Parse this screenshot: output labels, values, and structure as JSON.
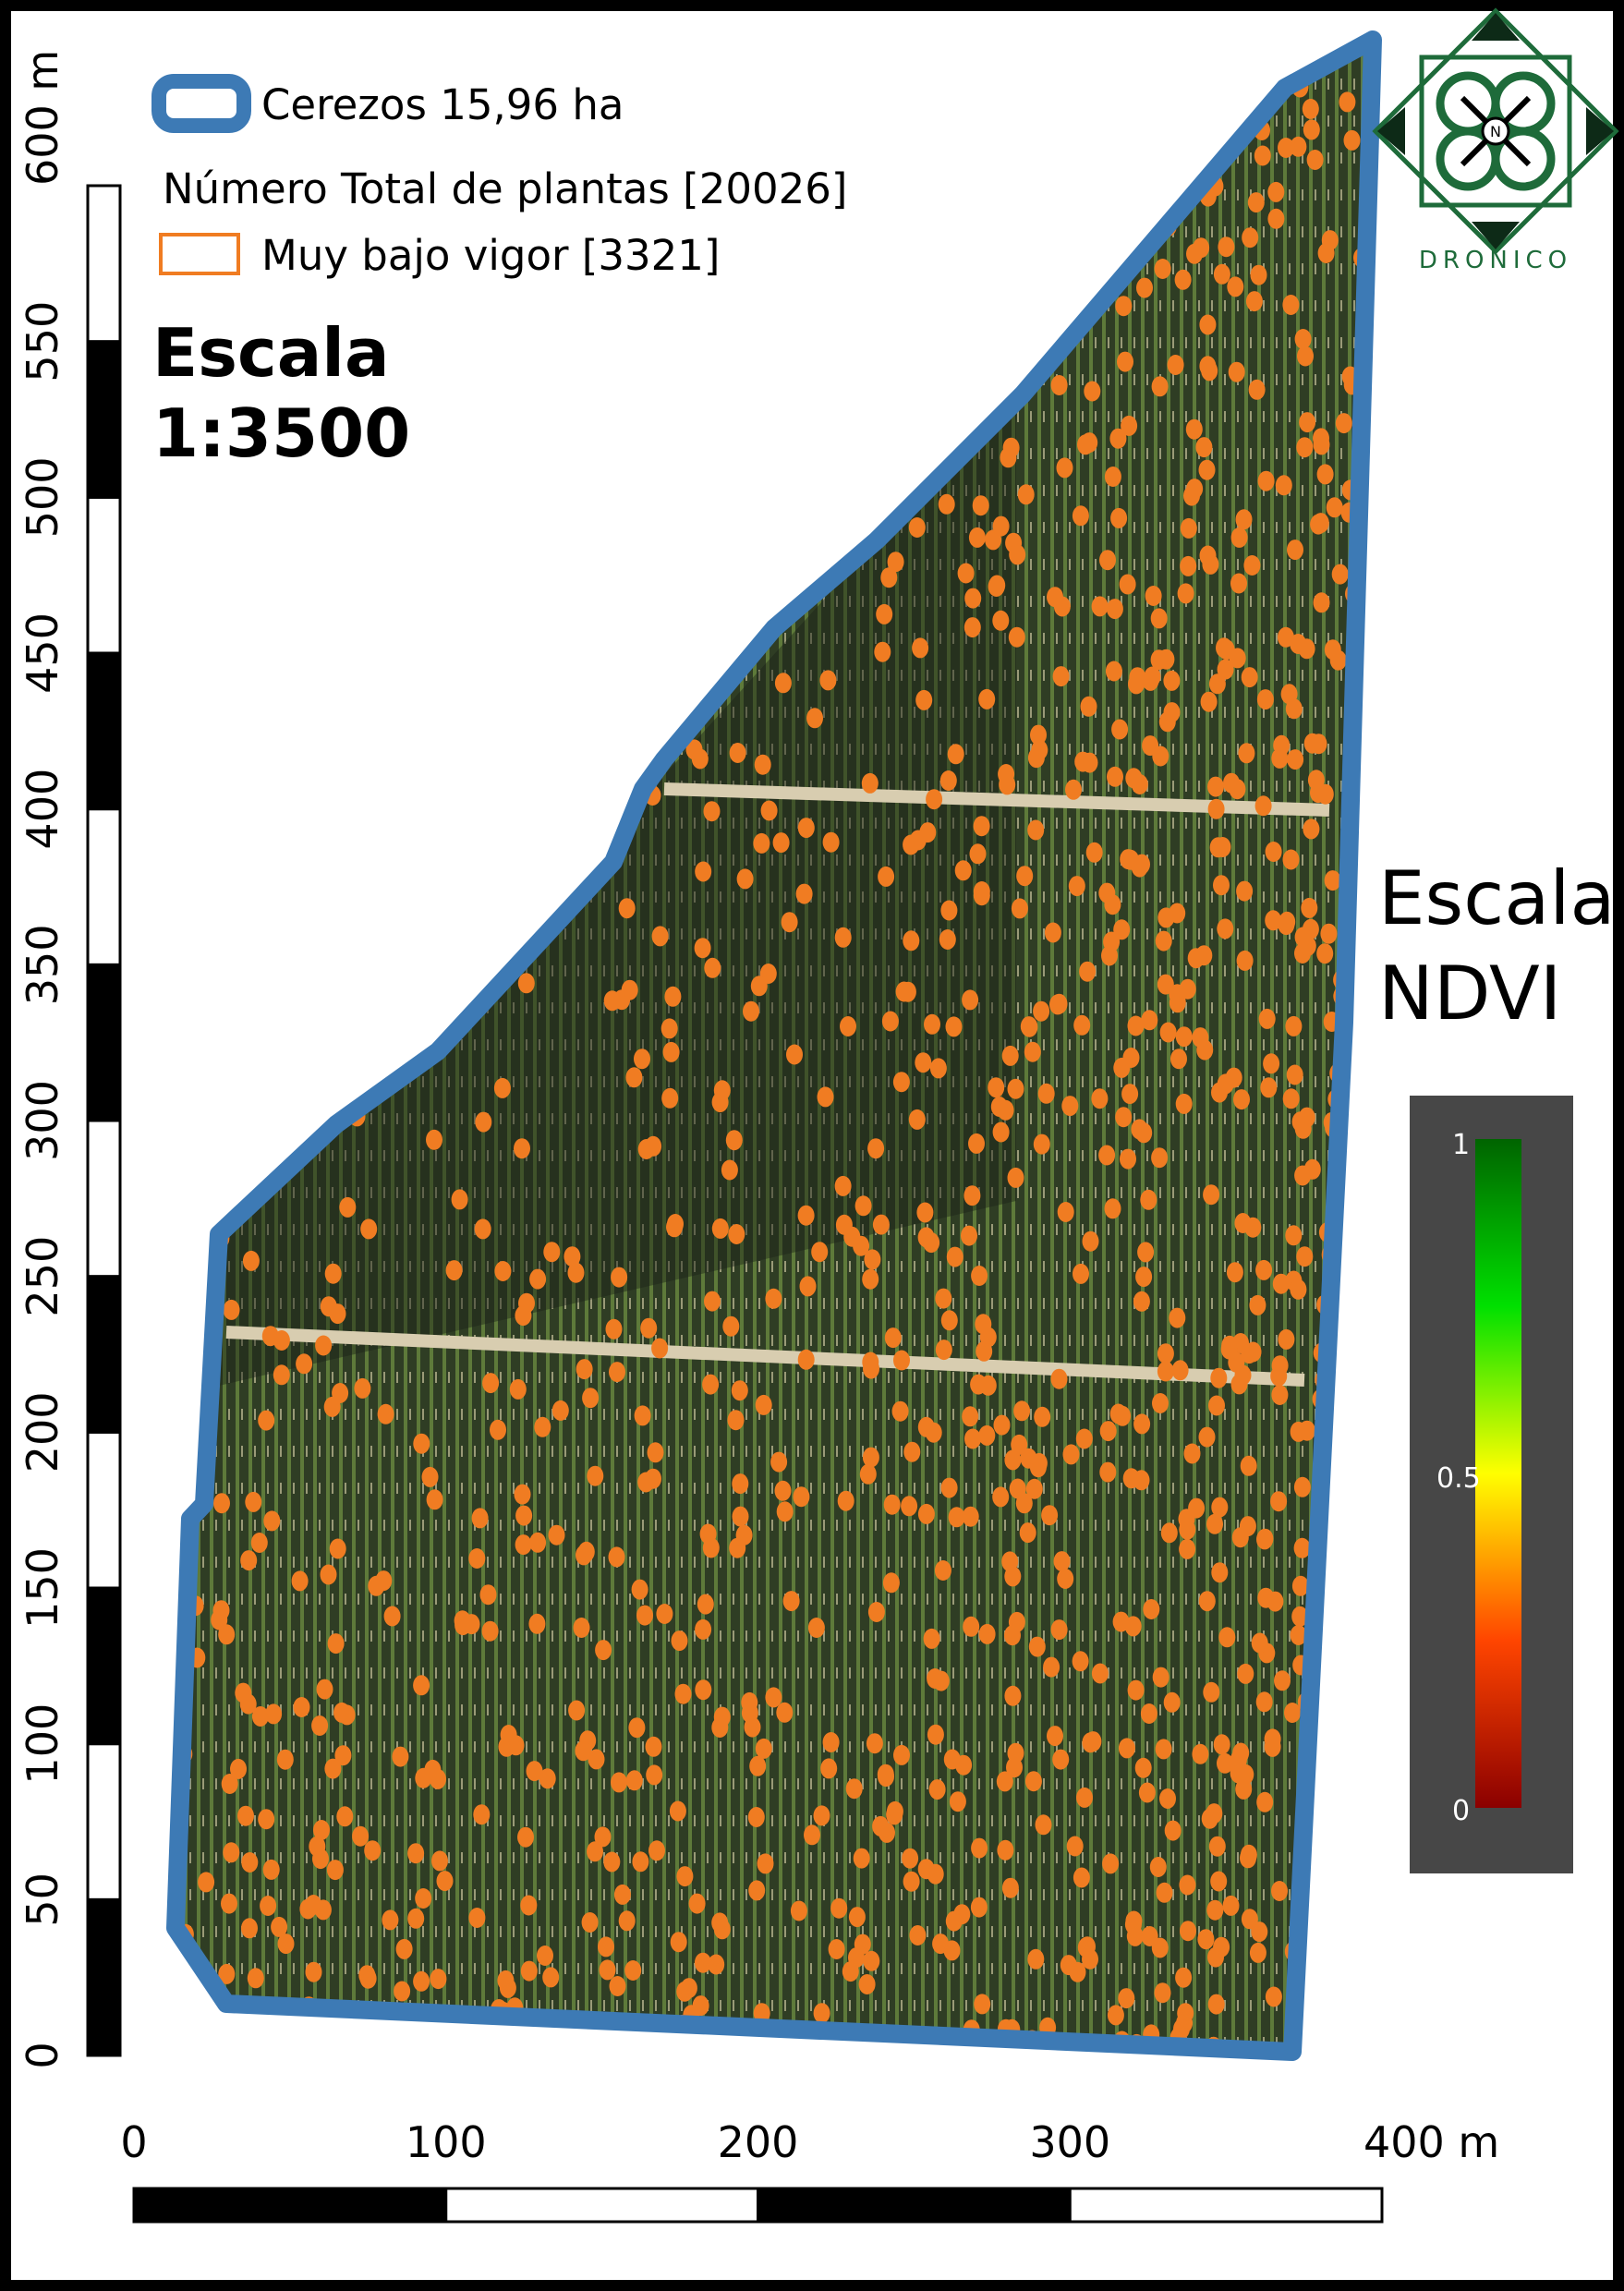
{
  "legend": {
    "boundary": "Cerezos 15,96 ha",
    "total": "Número Total de plantas [20026]",
    "low_vigor": "Muy bajo vigor [3321]"
  },
  "map_scale": {
    "title": "Escala",
    "ratio": "1:3500"
  },
  "vertical_scale": {
    "labels": [
      "0",
      "50",
      "100",
      "150",
      "200",
      "250",
      "300",
      "350",
      "400",
      "450",
      "500",
      "550",
      "600 m"
    ]
  },
  "horizontal_scale": {
    "labels": [
      "0",
      "100",
      "200",
      "300",
      "400 m"
    ]
  },
  "ndvi_scale": {
    "title_line1": "Escala",
    "title_line2": "NDVI",
    "labels": [
      "1",
      "0.5",
      "0"
    ]
  },
  "logo": {
    "name": "DRONICO",
    "north": "N"
  }
}
